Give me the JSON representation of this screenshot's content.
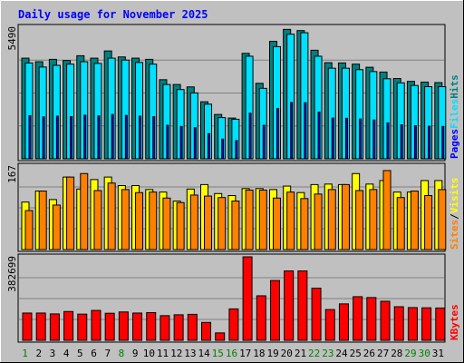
{
  "chart_data": {
    "type": "bar",
    "title": "Daily usage for November 2025",
    "days": [
      "1",
      "2",
      "3",
      "4",
      "5",
      "6",
      "7",
      "8",
      "9",
      "10",
      "11",
      "12",
      "13",
      "14",
      "15",
      "16",
      "17",
      "18",
      "19",
      "20",
      "21",
      "22",
      "23",
      "24",
      "25",
      "26",
      "27",
      "28",
      "29",
      "30",
      "31"
    ],
    "weekend_days": [
      "1",
      "8",
      "15",
      "16",
      "22",
      "23",
      "29",
      "30"
    ],
    "panels": [
      {
        "id": "hits",
        "ymax_label": "5490",
        "ymax": 5490,
        "series": [
          {
            "name": "Hits",
            "color": "#008080",
            "values": [
              4200,
              4050,
              4150,
              4100,
              4300,
              4200,
              4500,
              4250,
              4200,
              4150,
              3300,
              3100,
              3000,
              2380,
              1850,
              1700,
              4400,
              3150,
              4900,
              5400,
              5350,
              4530,
              4010,
              4000,
              3950,
              3820,
              3620,
              3350,
              3230,
              3200,
              3180
            ]
          },
          {
            "name": "Files",
            "color": "#00e0ff",
            "values": [
              4000,
              3830,
              3900,
              3950,
              4050,
              3980,
              4200,
              4120,
              4020,
              3950,
              3100,
              2890,
              2750,
              2280,
              1720,
              1650,
              4280,
              2940,
              4680,
              5200,
              5260,
              4280,
              3780,
              3780,
              3720,
              3640,
              3340,
              3170,
              3060,
              3010,
              3010
            ]
          },
          {
            "name": "Pages",
            "color": "#0000ff",
            "values": [
              1800,
              1750,
              1780,
              1760,
              1820,
              1790,
              1850,
              1810,
              1780,
              1760,
              1400,
              1350,
              1300,
              1050,
              820,
              760,
              1900,
              1400,
              2100,
              2350,
              2340,
              1950,
              1700,
              1690,
              1660,
              1620,
              1500,
              1420,
              1380,
              1360,
              1350
            ]
          }
        ],
        "side_labels": [
          "Pages",
          "Files",
          "Hits"
        ]
      },
      {
        "id": "visits",
        "ymax_label": "167",
        "ymax": 167,
        "series": [
          {
            "name": "Visits",
            "color": "#ffff00",
            "values": [
              95,
              117,
              100,
              145,
              121,
              140,
              145,
              128,
              128,
              120,
              115,
              97,
              121,
              130,
              112,
              108,
              122,
              122,
              120,
              127,
              114,
              130,
              131,
              130,
              152,
              131,
              138,
              115,
              115,
              138,
              138
            ]
          },
          {
            "name": "Sites",
            "color": "#ff8000",
            "values": [
              78,
              117,
              89,
              145,
              152,
              118,
              133,
              120,
              114,
              115,
              103,
              94,
              109,
              107,
              104,
              97,
              119,
              119,
              103,
              115,
              102,
              111,
              120,
              130,
              118,
              120,
              158,
              104,
              117,
              108,
              120
            ]
          }
        ],
        "side_labels": [
          "Sites",
          "/",
          "Visits"
        ]
      },
      {
        "id": "kbytes",
        "ymax_label": "382699",
        "ymax": 382699,
        "series": [
          {
            "name": "KBytes",
            "color": "#ff0000",
            "values": [
              125000,
              125000,
              121000,
              132000,
              120000,
              137000,
              124000,
              130000,
              125000,
              127000,
              113000,
              117000,
              119000,
              82000,
              34000,
              144000,
              382699,
              204000,
              274000,
              318000,
              318000,
              239000,
              141000,
              167000,
              200000,
              196000,
              179000,
              154000,
              150000,
              149000,
              148000
            ]
          }
        ],
        "side_labels": [
          "KBytes"
        ]
      }
    ]
  }
}
